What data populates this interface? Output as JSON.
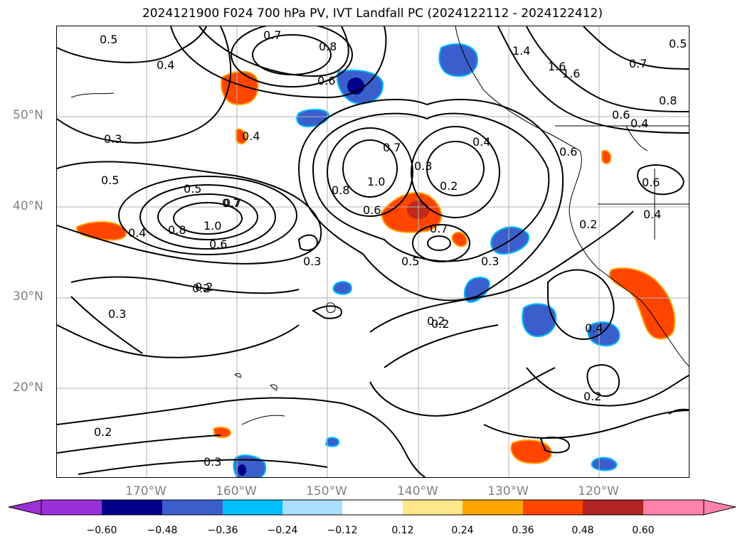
{
  "title": "2024121900 F024 700 hPa PV, IVT Landfall PC (2024122112 - 2024122412)",
  "lat_labels": [
    "50°N",
    "40°N",
    "30°N",
    "20°N"
  ],
  "lon_labels": [
    "170°W",
    "160°W",
    "150°W",
    "140°W",
    "130°W",
    "120°W"
  ],
  "contour_labels": [
    "0.5",
    "0.7",
    "0.8",
    "0.6",
    "0.5",
    "0.4",
    "0.4",
    "0.6",
    "0.3",
    "0.7",
    "0.5",
    "0.5",
    "0.7",
    "0.8",
    "1.0",
    "0.6",
    "0.4",
    "0.3",
    "0.2",
    "0.3",
    "0.7",
    "1.0",
    "0.8",
    "0.6",
    "0.3",
    "0.2",
    "0.4",
    "0.7",
    "0.5",
    "0.3",
    "0.2",
    "0.6",
    "0.2",
    "0.4",
    "0.6",
    "0.4",
    "0.8",
    "0.7",
    "1.4",
    "1.6",
    "1.6",
    "0.2",
    "0.2",
    "0.4",
    "0.3",
    "0.2",
    "0.2"
  ],
  "colorbar": {
    "ticks": [
      "−0.60",
      "−0.48",
      "−0.36",
      "−0.24",
      "−0.12",
      "0.12",
      "0.24",
      "0.36",
      "0.48",
      "0.60"
    ],
    "colors": [
      "#9b30d9",
      "#00008b",
      "#3a5fcd",
      "#00bfff",
      "#a9defd",
      "#ffffff",
      "#ffe88a",
      "#ffa500",
      "#ff4500",
      "#b22222",
      "#ff82ab"
    ]
  },
  "colors": {
    "grid": "#b0b0b0",
    "contour": "#000000",
    "axis_label": "#808080"
  }
}
